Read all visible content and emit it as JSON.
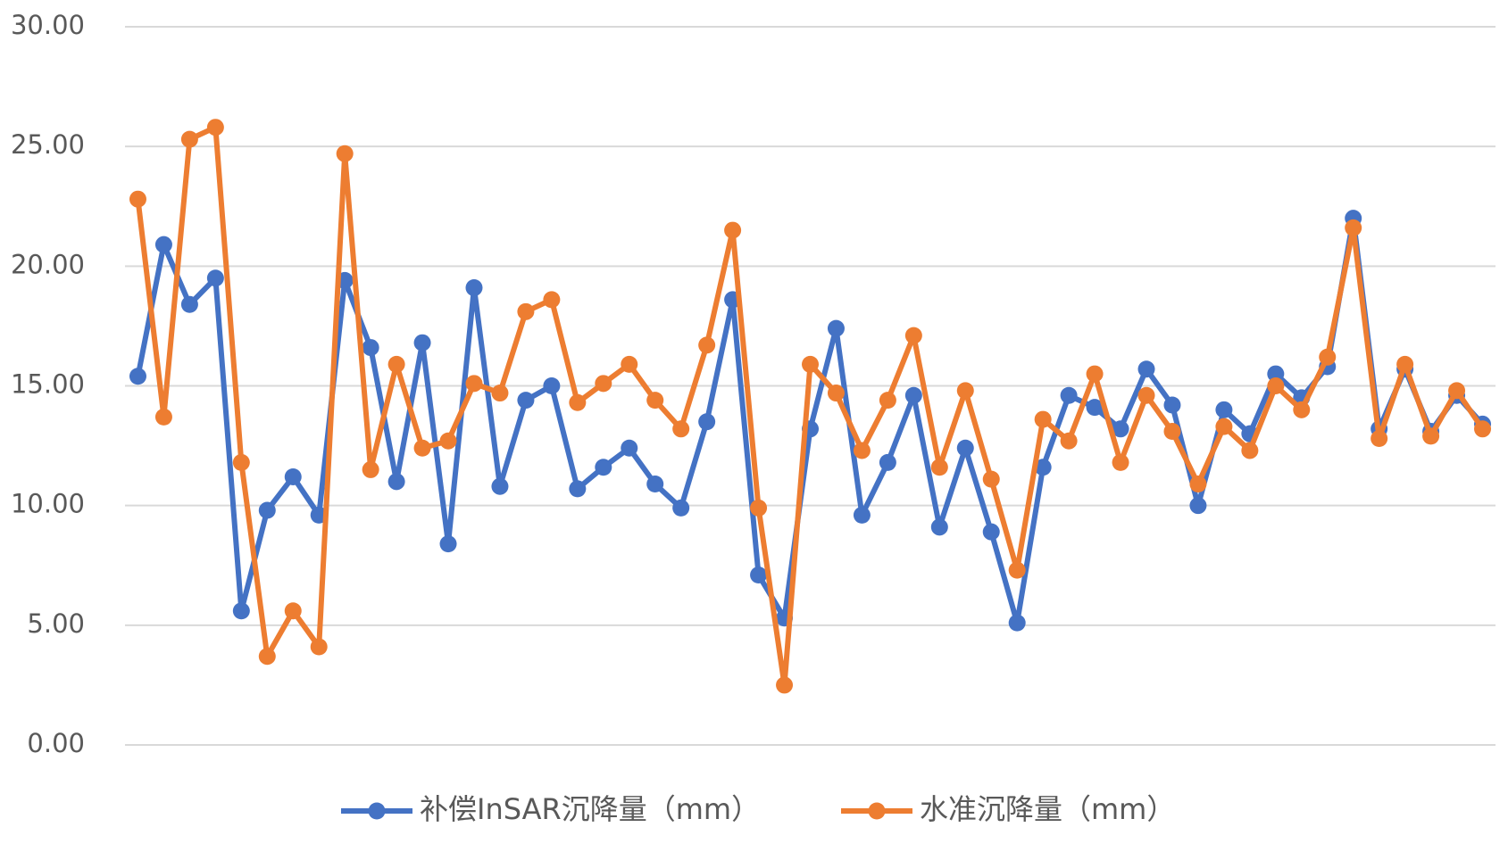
{
  "chart_data": {
    "type": "line",
    "categories": [
      null,
      null,
      null,
      null,
      null,
      null,
      null,
      null,
      null,
      null,
      null,
      null,
      null,
      null,
      null,
      null,
      null,
      null,
      null,
      null,
      null,
      null,
      null,
      null,
      null,
      null,
      null,
      null,
      null,
      null,
      null,
      null,
      null,
      null,
      null,
      null,
      null,
      null,
      null,
      null,
      null,
      null,
      null,
      null,
      null,
      null,
      null,
      null,
      null,
      null,
      null,
      null,
      null
    ],
    "series": [
      {
        "name": "补偿InSAR沉降量（mm）",
        "color": "#4472c4",
        "values": [
          15.4,
          20.9,
          18.4,
          19.5,
          5.6,
          9.8,
          11.2,
          9.6,
          19.4,
          16.6,
          11.0,
          16.8,
          8.4,
          19.1,
          10.8,
          14.4,
          15.0,
          10.7,
          11.6,
          12.4,
          10.9,
          9.9,
          13.5,
          18.6,
          7.1,
          5.3,
          13.2,
          17.4,
          9.6,
          11.8,
          14.6,
          9.1,
          12.4,
          8.9,
          5.1,
          11.6,
          14.6,
          14.1,
          13.2,
          15.7,
          14.2,
          10.0,
          14.0,
          13.0,
          15.5,
          14.5,
          15.8,
          22.0,
          13.2,
          15.7,
          13.1,
          14.6,
          13.4
        ]
      },
      {
        "name": "水准沉降量（mm）",
        "color": "#ed7d31",
        "values": [
          22.8,
          13.7,
          25.3,
          25.8,
          11.8,
          3.7,
          5.6,
          4.1,
          24.7,
          11.5,
          15.9,
          12.4,
          12.7,
          15.1,
          14.7,
          18.1,
          18.6,
          14.3,
          15.1,
          15.9,
          14.4,
          13.2,
          16.7,
          21.5,
          9.9,
          2.5,
          15.9,
          14.7,
          12.3,
          14.4,
          17.1,
          11.6,
          14.8,
          11.1,
          7.3,
          13.6,
          12.7,
          15.5,
          11.8,
          14.6,
          13.1,
          10.9,
          13.3,
          12.3,
          15.0,
          14.0,
          16.2,
          21.6,
          12.8,
          15.9,
          12.9,
          14.8,
          13.2
        ]
      }
    ],
    "ylim": [
      0,
      30
    ],
    "yticks": [
      {
        "value": 0,
        "label": "0.00"
      },
      {
        "value": 5,
        "label": "5.00"
      },
      {
        "value": 10,
        "label": "10.00"
      },
      {
        "value": 15,
        "label": "15.00"
      },
      {
        "value": 20,
        "label": "20.00"
      },
      {
        "value": 25,
        "label": "25.00"
      },
      {
        "value": 30,
        "label": "30.00"
      }
    ],
    "grid": true,
    "legend": "bottom"
  }
}
